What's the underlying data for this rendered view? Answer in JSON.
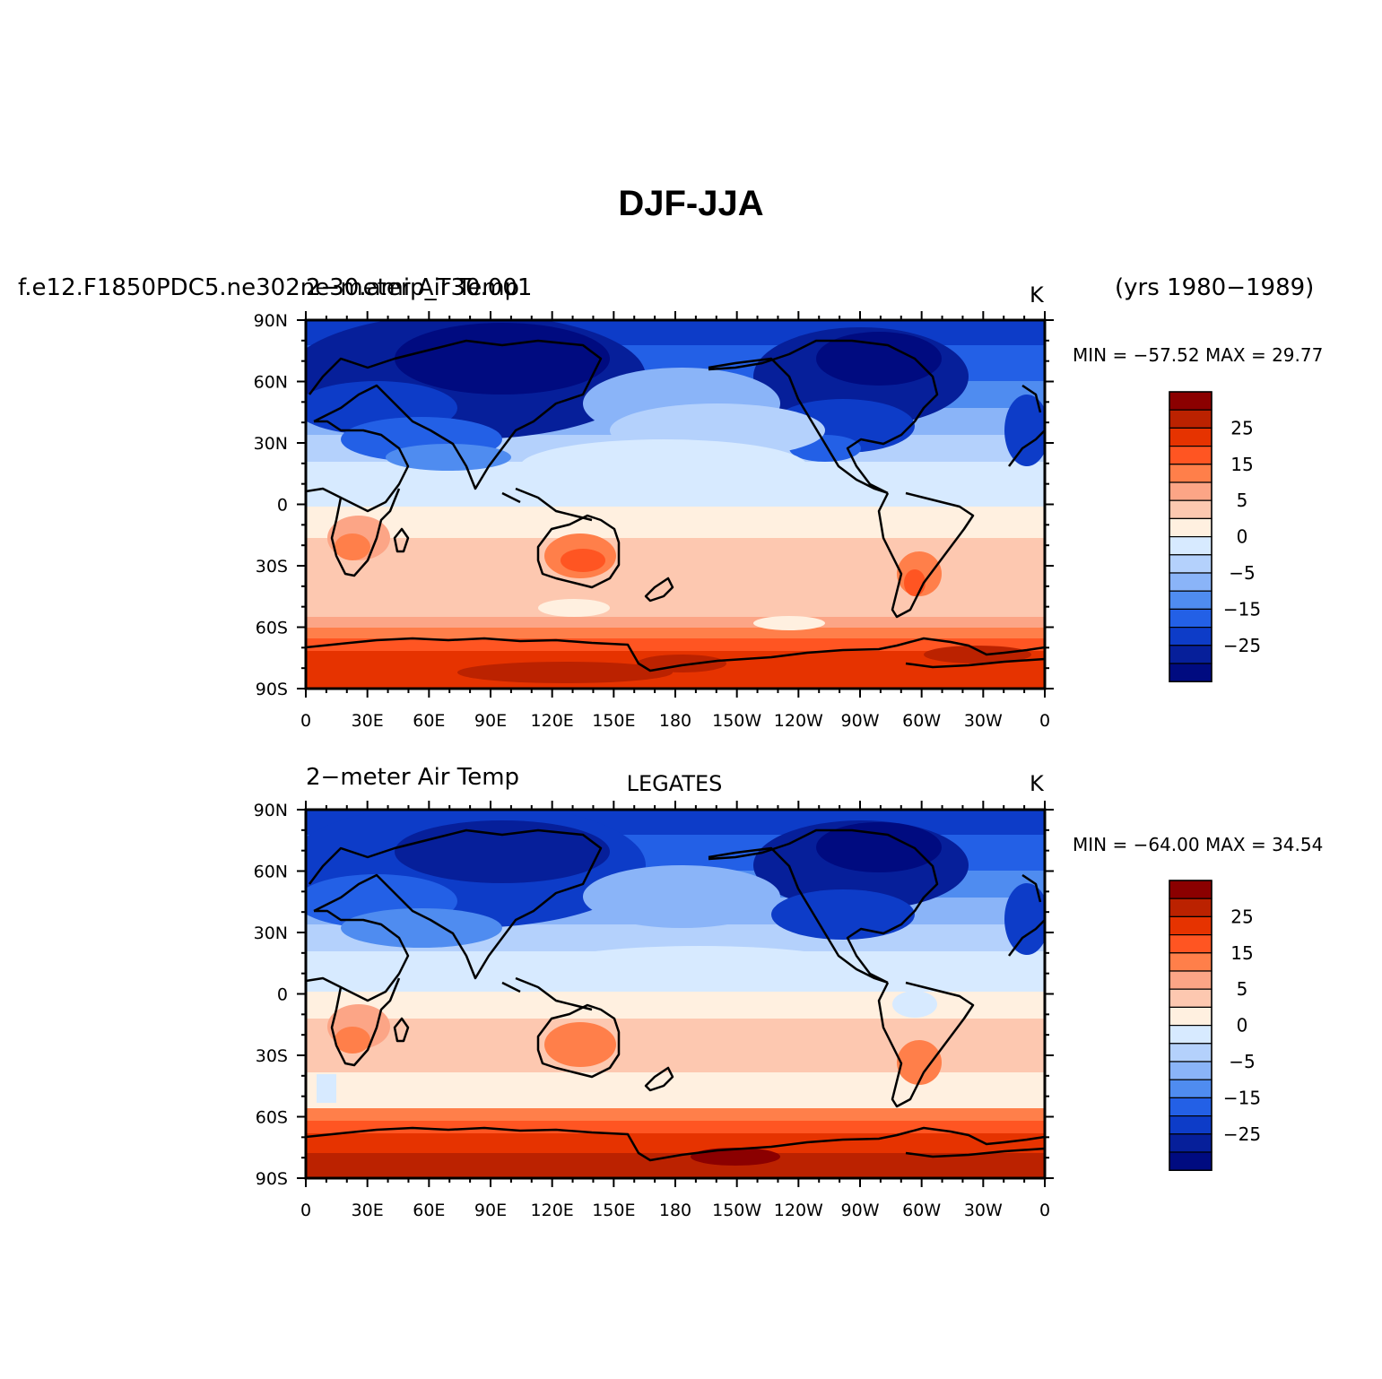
{
  "figure": {
    "title": "DJF-JJA",
    "case_name": "f.e12.F1850PDC5.ne302ne30.amip_T30.001",
    "years": "(yrs 1980−1989)"
  },
  "axes": {
    "lon_ticks": [
      "0",
      "30E",
      "60E",
      "90E",
      "120E",
      "150E",
      "180",
      "150W",
      "120W",
      "90W",
      "60W",
      "30W",
      "0"
    ],
    "lat_ticks": [
      "90N",
      "60N",
      "30N",
      "0",
      "30S",
      "60S",
      "90S"
    ]
  },
  "colorbar": {
    "labels": [
      "25",
      "15",
      "5",
      "0",
      "−5",
      "−15",
      "−25"
    ],
    "colors": [
      "#8b0000",
      "#bb2200",
      "#e63300",
      "#ff5522",
      "#ff7f4a",
      "#fca586",
      "#fdc8b0",
      "#fff0e0",
      "#d7eaff",
      "#b4d1fc",
      "#8ab4f8",
      "#4f8cf0",
      "#2360e6",
      "#0d3cc8",
      "#061f9a",
      "#000b80"
    ]
  },
  "panels": [
    {
      "left_string": "2−meter Air Temp",
      "center_string": "",
      "units": "K",
      "min_max": "MIN = −57.52  MAX =  29.77"
    },
    {
      "left_string": "2−meter Air Temp",
      "center_string": "LEGATES",
      "units": "K",
      "min_max": "MIN = −64.00  MAX =  34.54"
    }
  ]
}
